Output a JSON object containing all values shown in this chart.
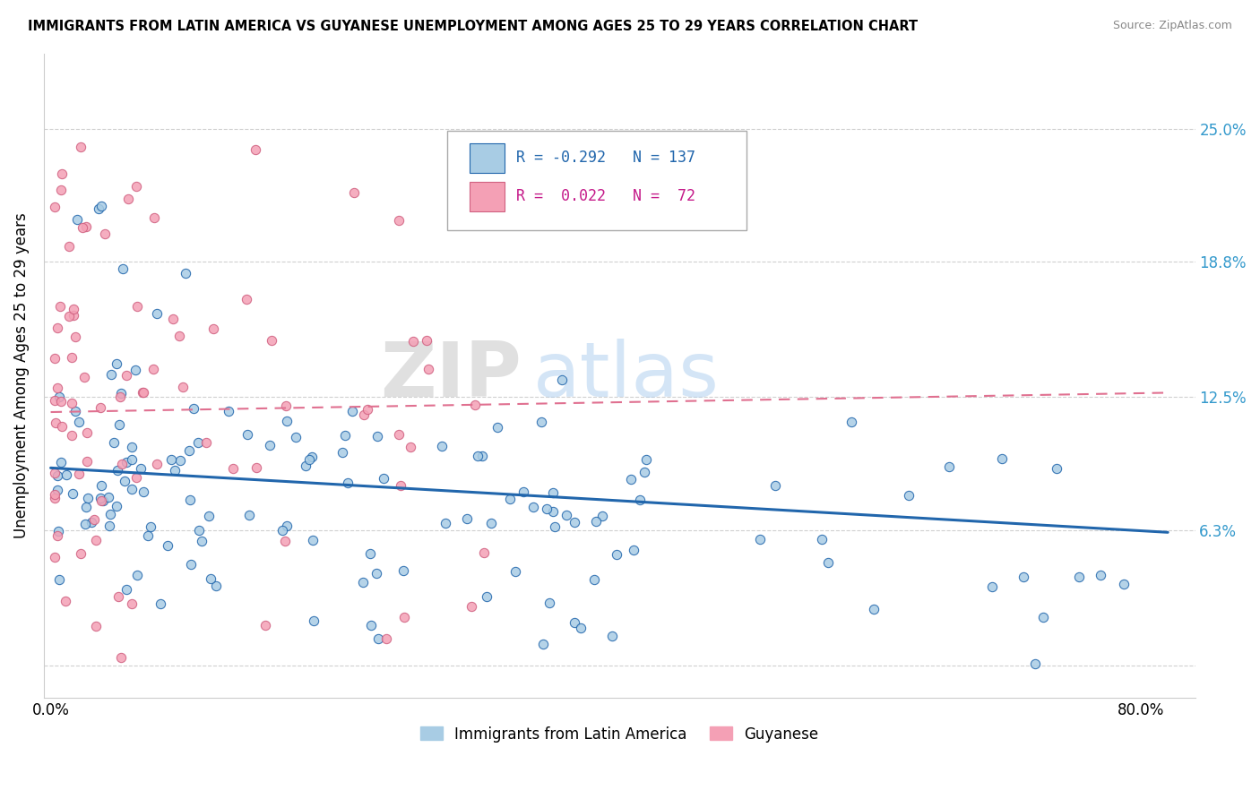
{
  "title": "IMMIGRANTS FROM LATIN AMERICA VS GUYANESE UNEMPLOYMENT AMONG AGES 25 TO 29 YEARS CORRELATION CHART",
  "source": "Source: ZipAtlas.com",
  "ylabel": "Unemployment Among Ages 25 to 29 years",
  "legend_label_blue": "Immigrants from Latin America",
  "legend_label_pink": "Guyanese",
  "R_blue": -0.292,
  "N_blue": 137,
  "R_pink": 0.022,
  "N_pink": 72,
  "color_blue": "#a8cce4",
  "color_pink": "#f4a0b5",
  "trendline_color_blue": "#2166ac",
  "trendline_color_pink": "#e07090",
  "xlim": [
    -0.005,
    0.84
  ],
  "ylim": [
    -0.015,
    0.285
  ],
  "right_ytick_positions": [
    0.063,
    0.125,
    0.188,
    0.25
  ],
  "right_ytick_labels": [
    "6.3%",
    "12.5%",
    "18.8%",
    "25.0%"
  ],
  "xtick_positions": [
    0.0,
    0.1,
    0.2,
    0.3,
    0.4,
    0.5,
    0.6,
    0.7,
    0.8
  ],
  "xtick_labels": [
    "0.0%",
    "",
    "",
    "",
    "",
    "",
    "",
    "",
    "80.0%"
  ],
  "watermark_zip": "ZIP",
  "watermark_atlas": "atlas",
  "grid_color": "#d0d0d0",
  "blue_trend_x_start": 0.0,
  "blue_trend_x_end": 0.82,
  "blue_trend_y_start": 0.092,
  "blue_trend_y_end": 0.062,
  "pink_trend_x_start": 0.0,
  "pink_trend_x_end": 0.82,
  "pink_trend_y_start": 0.118,
  "pink_trend_y_end": 0.127
}
